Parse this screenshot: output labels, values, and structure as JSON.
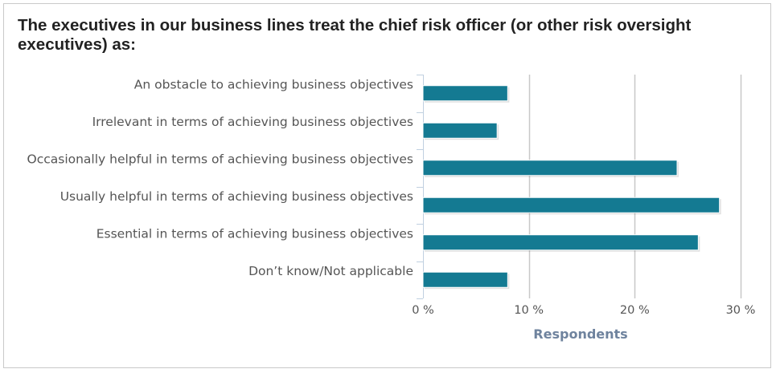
{
  "chart_data": {
    "type": "bar",
    "orientation": "horizontal",
    "title": "The executives in our business lines treat the chief risk officer (or other risk oversight executives) as:",
    "categories": [
      "An obstacle to achieving business objectives",
      "Irrelevant in terms of achieving business objectives",
      "Occasionally helpful in terms of achieving business objectives",
      "Usually helpful in terms of achieving business objectives",
      "Essential in terms of achieving business objectives",
      "Don’t know/Not applicable"
    ],
    "values": [
      8,
      7,
      24,
      28,
      26,
      8
    ],
    "value_unit": "%",
    "xlabel": "Respondents",
    "xlim": [
      0,
      30
    ],
    "xticks": [
      0,
      10,
      20,
      30
    ],
    "tick_labels": [
      "0 %",
      "10 %",
      "20 %",
      "30 %"
    ],
    "grid": true,
    "legend": "none",
    "bar_color": "#147a92"
  }
}
